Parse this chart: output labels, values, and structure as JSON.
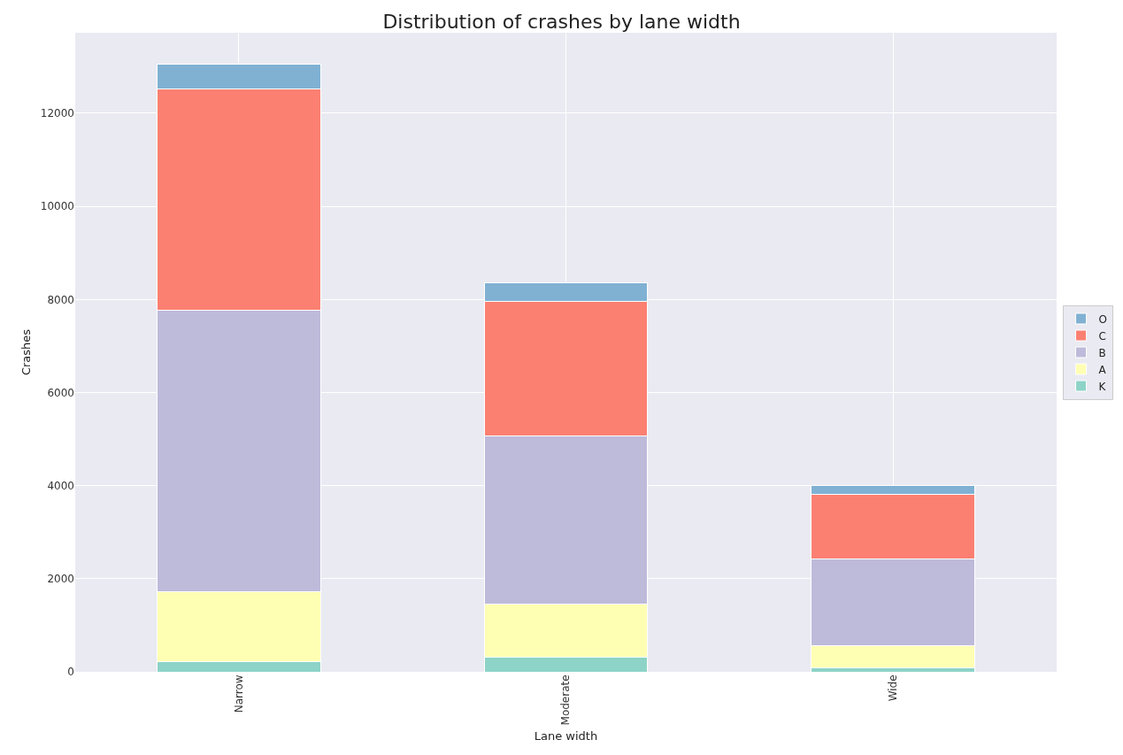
{
  "chart_data": {
    "type": "bar",
    "title": "Distribution of crashes by lane width",
    "xlabel": "Lane width",
    "ylabel": "Crashes",
    "categories": [
      "Narrow",
      "Moderate",
      "Wide"
    ],
    "stacked": true,
    "series": [
      {
        "name": "K",
        "color": "#8dd3c7",
        "values": [
          210,
          320,
          80
        ]
      },
      {
        "name": "A",
        "color": "#ffffb3",
        "values": [
          1520,
          1130,
          490
        ]
      },
      {
        "name": "B",
        "color": "#bebada",
        "values": [
          6030,
          3610,
          1850
        ]
      },
      {
        "name": "C",
        "color": "#fb8072",
        "values": [
          4770,
          2890,
          1400
        ]
      },
      {
        "name": "O",
        "color": "#80b1d3",
        "values": [
          530,
          400,
          190
        ]
      }
    ],
    "ylim": [
      0,
      13730
    ],
    "yticks": [
      0,
      2000,
      4000,
      6000,
      8000,
      10000,
      12000
    ],
    "grid": true,
    "legend": "right"
  }
}
